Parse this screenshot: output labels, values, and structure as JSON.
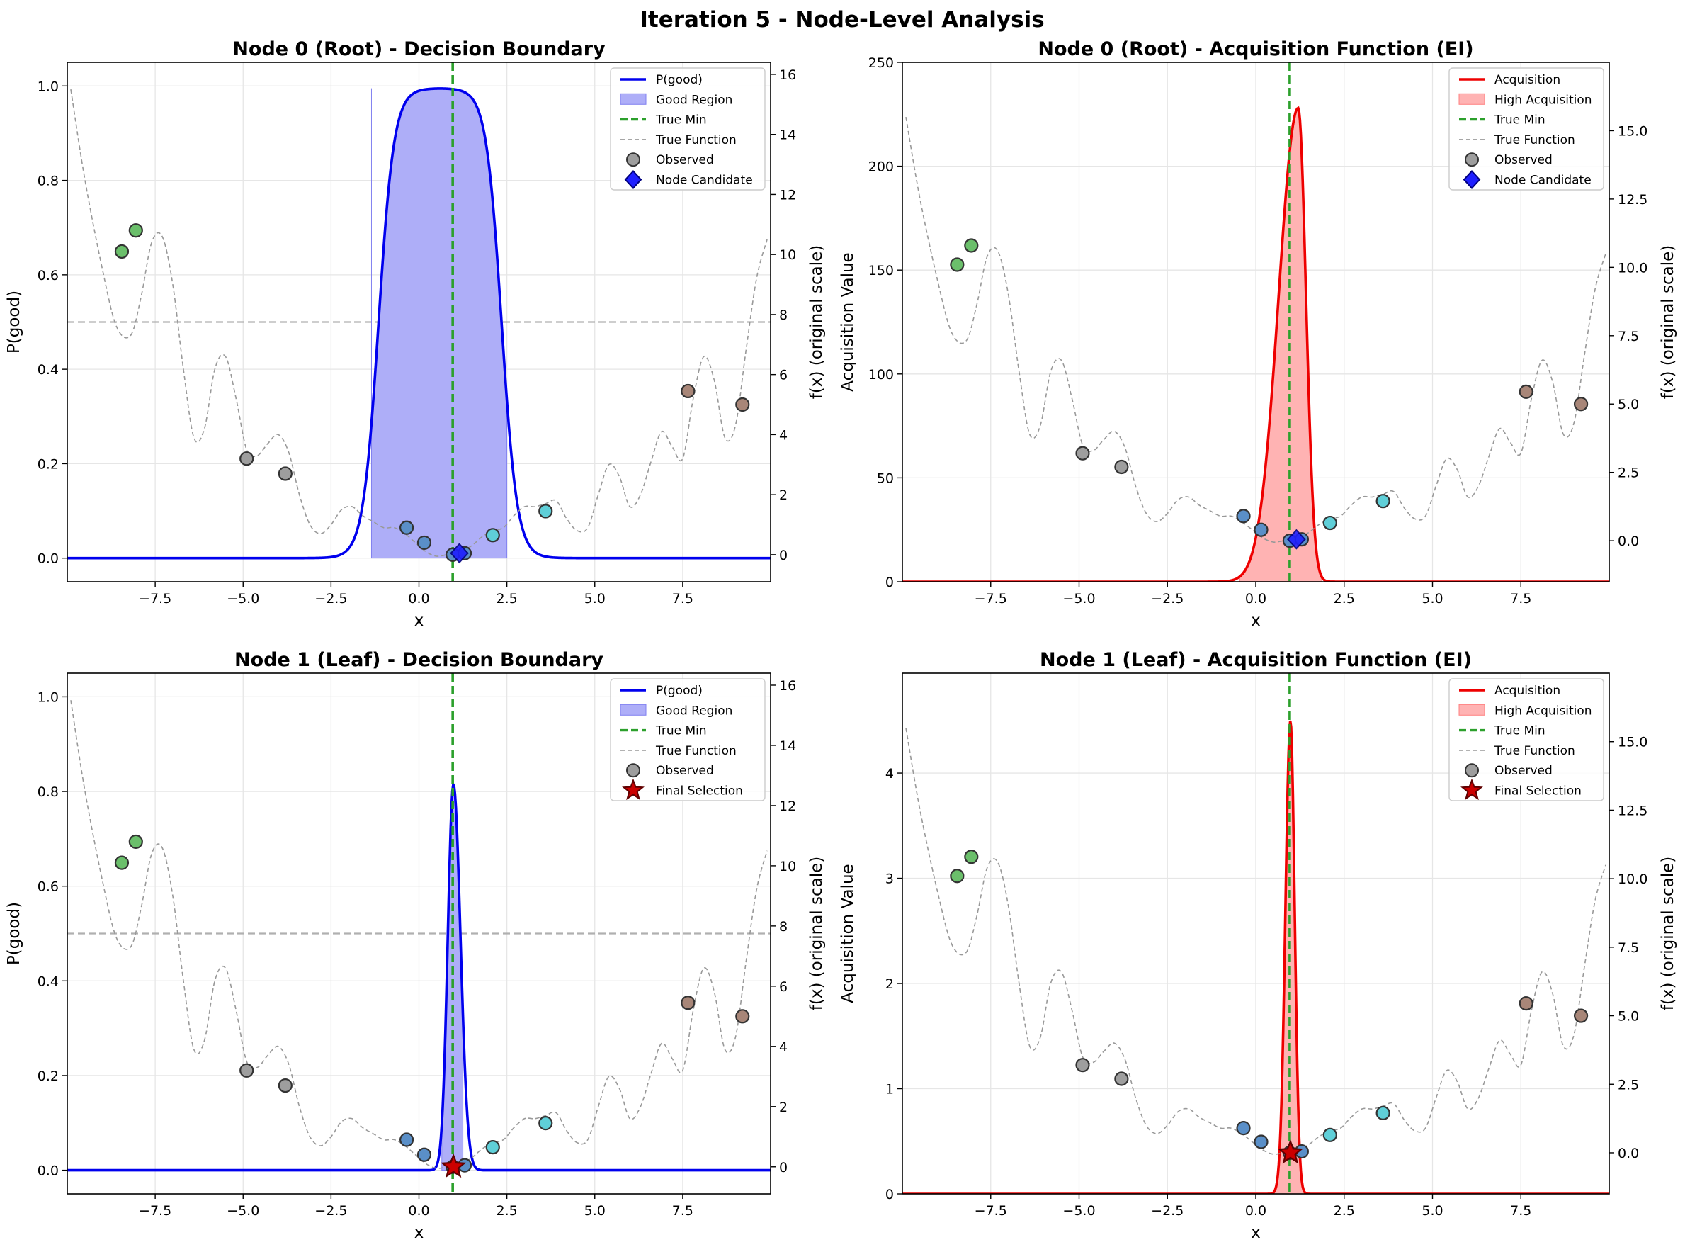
{
  "figure": {
    "suptitle": "Iteration 5 - Node-Level Analysis"
  },
  "colors": {
    "pgood": "#0000ee",
    "good_fill": "#aeaef8",
    "acq": "#ee0000",
    "acq_fill": "#ffb3b3",
    "true_min": "#2ca02c",
    "true_fn": "#999999",
    "threshold": "#b0b0b0",
    "grid": "#e6e6e6",
    "pt_green": "#6bbf6b",
    "pt_gray": "#9e9e9e",
    "pt_blue": "#5a8fc8",
    "pt_cyan": "#5fcfd8",
    "pt_brown": "#a88678",
    "candidate": "#1f1fff",
    "star": "#cc0000"
  },
  "shared": {
    "true_min_x": 0.96,
    "true_function": {
      "x": [
        -9.9,
        -9.5,
        -9.0,
        -8.6,
        -8.2,
        -7.9,
        -7.6,
        -7.3,
        -7.0,
        -6.7,
        -6.4,
        -6.1,
        -5.8,
        -5.5,
        -5.2,
        -4.9,
        -4.6,
        -4.3,
        -4.0,
        -3.7,
        -3.4,
        -3.1,
        -2.8,
        -2.5,
        -2.2,
        -1.9,
        -1.6,
        -1.3,
        -1.0,
        -0.7,
        -0.4,
        -0.1,
        0.2,
        0.5,
        0.8,
        1.0,
        1.2,
        1.5,
        1.8,
        2.1,
        2.4,
        2.7,
        3.0,
        3.3,
        3.6,
        3.9,
        4.2,
        4.5,
        4.8,
        5.1,
        5.4,
        5.7,
        6.0,
        6.3,
        6.6,
        6.9,
        7.2,
        7.5,
        7.8,
        8.1,
        8.4,
        8.7,
        9.0,
        9.3,
        9.6,
        9.9
      ],
      "y": [
        15.5,
        12.5,
        9.5,
        7.6,
        7.3,
        8.6,
        10.4,
        10.6,
        9.0,
        6.2,
        3.9,
        4.2,
        6.2,
        6.6,
        5.2,
        3.5,
        3.3,
        3.7,
        4.0,
        3.4,
        2.0,
        1.0,
        0.7,
        1.0,
        1.5,
        1.6,
        1.3,
        1.1,
        0.9,
        0.9,
        0.7,
        0.4,
        0.1,
        -0.05,
        0.0,
        0.0,
        0.1,
        0.3,
        0.6,
        0.8,
        0.9,
        1.3,
        1.6,
        1.6,
        1.7,
        1.8,
        1.2,
        0.8,
        0.9,
        2.0,
        3.0,
        2.6,
        1.6,
        2.0,
        3.1,
        4.1,
        3.6,
        3.2,
        5.2,
        6.6,
        5.8,
        3.9,
        4.3,
        6.8,
        9.2,
        10.5
      ]
    },
    "observed": [
      {
        "x": -8.45,
        "y": 10.1,
        "group": "green"
      },
      {
        "x": -8.05,
        "y": 10.8,
        "group": "green"
      },
      {
        "x": -4.9,
        "y": 3.2,
        "group": "gray"
      },
      {
        "x": -3.8,
        "y": 2.7,
        "group": "gray"
      },
      {
        "x": -0.35,
        "y": 0.9,
        "group": "blue"
      },
      {
        "x": 0.15,
        "y": 0.4,
        "group": "blue"
      },
      {
        "x": 0.96,
        "y": 0.0,
        "group": "blue"
      },
      {
        "x": 1.3,
        "y": 0.05,
        "group": "blue"
      },
      {
        "x": 2.1,
        "y": 0.65,
        "group": "cyan"
      },
      {
        "x": 3.6,
        "y": 1.45,
        "group": "cyan"
      },
      {
        "x": 7.65,
        "y": 5.45,
        "group": "brown"
      },
      {
        "x": 9.2,
        "y": 5.0,
        "group": "brown"
      }
    ],
    "x_ticks": [
      -7.5,
      -5.0,
      -2.5,
      0.0,
      2.5,
      5.0,
      7.5
    ],
    "x_tick_labels": [
      "−7.5",
      "−5.0",
      "−2.5",
      "0.0",
      "2.5",
      "5.0",
      "7.5"
    ],
    "xlim": [
      -10,
      10
    ],
    "fx_label": "f(x) (original scale)"
  },
  "chart_data": [
    {
      "type": "line",
      "title": "Node 0 (Root) - Decision Boundary",
      "xlabel": "x",
      "ylabel": "P(good)",
      "ylim": [
        -0.05,
        1.05
      ],
      "y_ticks": [
        0.0,
        0.2,
        0.4,
        0.6,
        0.8,
        1.0
      ],
      "y_tick_labels": [
        "0.0",
        "0.2",
        "0.4",
        "0.6",
        "0.8",
        "1.0"
      ],
      "y2lim": [
        -0.9,
        16.4
      ],
      "y2_ticks": [
        0,
        2,
        4,
        6,
        8,
        10,
        12,
        14,
        16
      ],
      "y2_tick_labels": [
        "0",
        "2",
        "4",
        "6",
        "8",
        "10",
        "12",
        "14",
        "16"
      ],
      "threshold": 0.5,
      "curve": {
        "kind": "logistic",
        "center": 0.6,
        "halfwidth": 1.75,
        "steep": 0.22,
        "peak": 0.995
      },
      "region": [
        -1.35,
        2.5
      ],
      "region_height": 0.995,
      "marker": {
        "kind": "diamond",
        "x": 1.15,
        "fy": 0.05
      },
      "legend": [
        "P(good)",
        "Good Region",
        "True Min",
        "True Function",
        "Observed",
        "Node Candidate"
      ]
    },
    {
      "type": "line",
      "title": "Node 0 (Root) - Acquisition Function (EI)",
      "xlabel": "x",
      "ylabel": "Acquisition Value",
      "ylim": [
        0,
        250
      ],
      "y_ticks": [
        0,
        50,
        100,
        150,
        200,
        250
      ],
      "y_tick_labels": [
        "0",
        "50",
        "100",
        "150",
        "200",
        "250"
      ],
      "y2lim": [
        -1.5,
        17.5
      ],
      "y2_ticks": [
        0.0,
        2.5,
        5.0,
        7.5,
        10.0,
        12.5,
        15.0
      ],
      "y2_tick_labels": [
        "0.0",
        "2.5",
        "5.0",
        "7.5",
        "10.0",
        "12.5",
        "15.0"
      ],
      "curve": {
        "kind": "peak",
        "center": 1.2,
        "peak": 228,
        "sigma_left": 0.55,
        "sigma_right": 0.22
      },
      "region": [
        -0.45,
        1.85
      ],
      "marker": {
        "kind": "diamond",
        "x": 1.15,
        "fy": 0.05
      },
      "legend": [
        "Acquisition",
        "High Acquisition",
        "True Min",
        "True Function",
        "Observed",
        "Node Candidate"
      ]
    },
    {
      "type": "line",
      "title": "Node 1 (Leaf) - Decision Boundary",
      "xlabel": "x",
      "ylabel": "P(good)",
      "ylim": [
        -0.05,
        1.05
      ],
      "y_ticks": [
        0.0,
        0.2,
        0.4,
        0.6,
        0.8,
        1.0
      ],
      "y_tick_labels": [
        "0.0",
        "0.2",
        "0.4",
        "0.6",
        "0.8",
        "1.0"
      ],
      "y2lim": [
        -0.9,
        16.4
      ],
      "y2_ticks": [
        0,
        2,
        4,
        6,
        8,
        10,
        12,
        14,
        16
      ],
      "y2_tick_labels": [
        "0",
        "2",
        "4",
        "6",
        "8",
        "10",
        "12",
        "14",
        "16"
      ],
      "threshold": 0.5,
      "curve": {
        "kind": "peak",
        "center": 0.98,
        "peak": 0.815,
        "sigma_left": 0.16,
        "sigma_right": 0.2
      },
      "region": [
        0.65,
        1.25
      ],
      "marker": {
        "kind": "star",
        "x": 0.98,
        "fy": 0.0
      },
      "legend": [
        "P(good)",
        "Good Region",
        "True Min",
        "True Function",
        "Observed",
        "Final Selection"
      ]
    },
    {
      "type": "line",
      "title": "Node 1 (Leaf) - Acquisition Function (EI)",
      "xlabel": "x",
      "ylabel": "Acquisition Value",
      "ylim": [
        0,
        4.95
      ],
      "y_ticks": [
        0,
        1,
        2,
        3,
        4
      ],
      "y_tick_labels": [
        "0",
        "1",
        "2",
        "3",
        "4"
      ],
      "y2lim": [
        -1.5,
        17.5
      ],
      "y2_ticks": [
        0.0,
        2.5,
        5.0,
        7.5,
        10.0,
        12.5,
        15.0
      ],
      "y2_tick_labels": [
        "0.0",
        "2.5",
        "5.0",
        "7.5",
        "10.0",
        "12.5",
        "15.0"
      ],
      "curve": {
        "kind": "peak",
        "center": 0.98,
        "peak": 4.5,
        "sigma_left": 0.14,
        "sigma_right": 0.12
      },
      "region": [
        0.3,
        1.6
      ],
      "marker": {
        "kind": "star",
        "x": 0.98,
        "fy": 0.0
      },
      "legend": [
        "Acquisition",
        "High Acquisition",
        "True Min",
        "True Function",
        "Observed",
        "Final Selection"
      ]
    }
  ]
}
